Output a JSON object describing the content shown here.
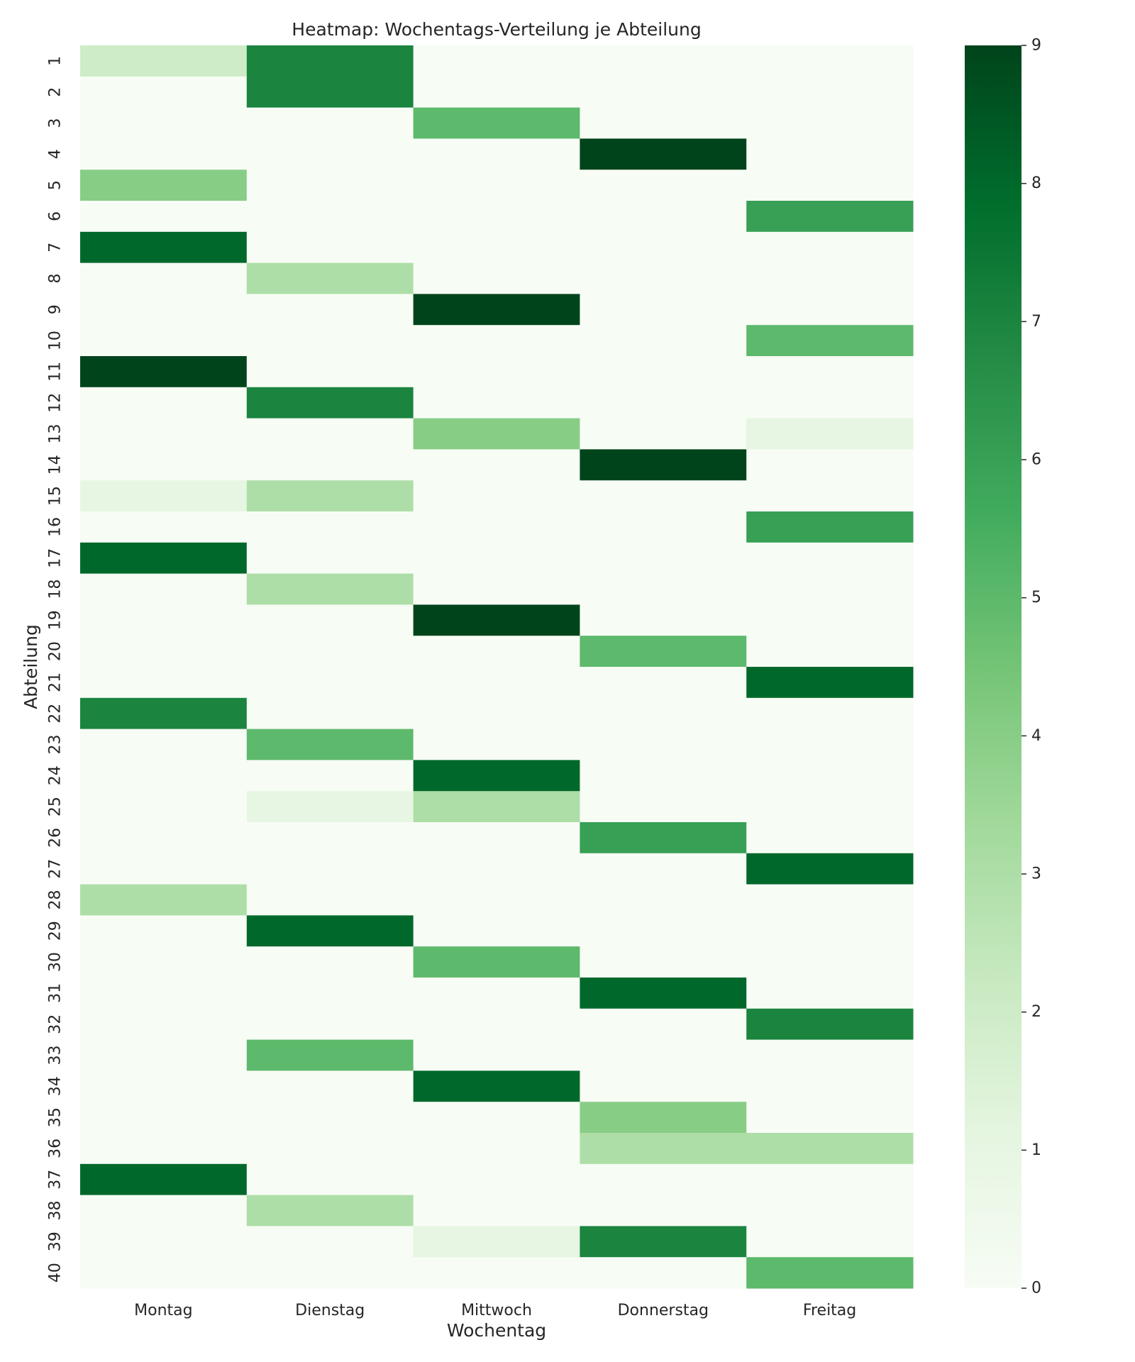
{
  "chart_data": {
    "type": "heatmap",
    "title": "Heatmap: Wochentags-Verteilung je Abteilung",
    "xlabel": "Wochentag",
    "ylabel": "Abteilung",
    "x_categories": [
      "Montag",
      "Dienstag",
      "Mittwoch",
      "Donnerstag",
      "Freitag"
    ],
    "y_categories": [
      "1",
      "2",
      "3",
      "4",
      "5",
      "6",
      "7",
      "8",
      "9",
      "10",
      "11",
      "12",
      "13",
      "14",
      "15",
      "16",
      "17",
      "18",
      "19",
      "20",
      "21",
      "22",
      "23",
      "24",
      "25",
      "26",
      "27",
      "28",
      "29",
      "30",
      "31",
      "32",
      "33",
      "34",
      "35",
      "36",
      "37",
      "38",
      "39",
      "40"
    ],
    "values": [
      [
        2,
        7,
        0,
        0,
        0
      ],
      [
        0,
        7,
        0,
        0,
        0
      ],
      [
        0,
        0,
        5,
        0,
        0
      ],
      [
        0,
        0,
        0,
        9,
        0
      ],
      [
        4,
        0,
        0,
        0,
        0
      ],
      [
        0,
        0,
        0,
        0,
        6
      ],
      [
        8,
        0,
        0,
        0,
        0
      ],
      [
        0,
        3,
        0,
        0,
        0
      ],
      [
        0,
        0,
        9,
        0,
        0
      ],
      [
        0,
        0,
        0,
        0,
        5
      ],
      [
        9,
        0,
        0,
        0,
        0
      ],
      [
        0,
        7,
        0,
        0,
        0
      ],
      [
        0,
        0,
        4,
        0,
        1
      ],
      [
        0,
        0,
        0,
        9,
        0
      ],
      [
        1,
        3,
        0,
        0,
        0
      ],
      [
        0,
        0,
        0,
        0,
        6
      ],
      [
        8,
        0,
        0,
        0,
        0
      ],
      [
        0,
        3,
        0,
        0,
        0
      ],
      [
        0,
        0,
        9,
        0,
        0
      ],
      [
        0,
        0,
        0,
        5,
        0
      ],
      [
        0,
        0,
        0,
        0,
        8
      ],
      [
        7,
        0,
        0,
        0,
        0
      ],
      [
        0,
        5,
        0,
        0,
        0
      ],
      [
        0,
        0,
        8,
        0,
        0
      ],
      [
        0,
        1,
        3,
        0,
        0
      ],
      [
        0,
        0,
        0,
        6,
        0
      ],
      [
        0,
        0,
        0,
        0,
        8
      ],
      [
        3,
        0,
        0,
        0,
        0
      ],
      [
        0,
        8,
        0,
        0,
        0
      ],
      [
        0,
        0,
        5,
        0,
        0
      ],
      [
        0,
        0,
        0,
        8,
        0
      ],
      [
        0,
        0,
        0,
        0,
        7
      ],
      [
        0,
        5,
        0,
        0,
        0
      ],
      [
        0,
        0,
        8,
        0,
        0
      ],
      [
        0,
        0,
        0,
        4,
        0
      ],
      [
        0,
        0,
        0,
        3,
        3
      ],
      [
        8,
        0,
        0,
        0,
        0
      ],
      [
        0,
        3,
        0,
        0,
        0
      ],
      [
        0,
        0,
        1,
        7,
        0
      ],
      [
        0,
        0,
        0,
        0,
        5
      ]
    ],
    "colorbar": {
      "min": 0,
      "max": 9,
      "ticks": [
        "0",
        "1",
        "2",
        "3",
        "4",
        "5",
        "6",
        "7",
        "8",
        "9"
      ]
    },
    "colormap": "Greens",
    "colors": [
      "#f7fcf5",
      "#e5f5e0",
      "#c7e9c0",
      "#a1d99b",
      "#74c476",
      "#41ab5d",
      "#238b45",
      "#006d2c",
      "#00441b"
    ]
  }
}
